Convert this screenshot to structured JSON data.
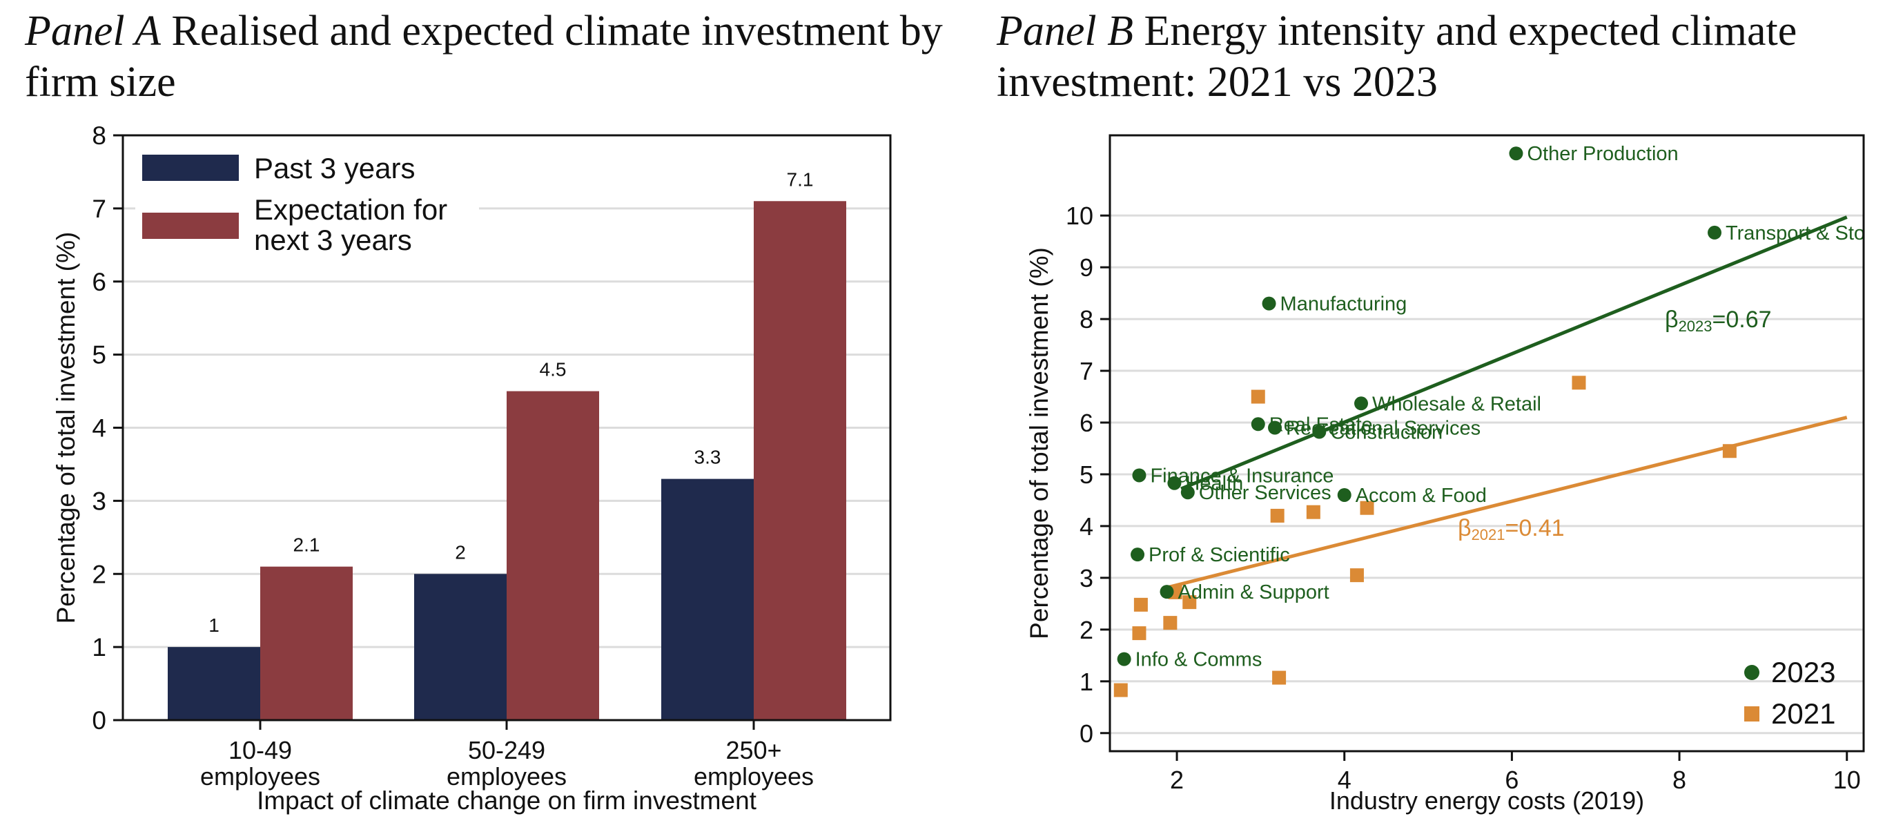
{
  "panel_a": {
    "title_prefix": "Panel A",
    "title_rest": "Realised and expected climate investment by firm size"
  },
  "panel_b": {
    "title_prefix": "Panel B",
    "title_rest": "Energy intensity and expected climate investment: 2021 vs 2023"
  },
  "colors": {
    "navy": "#1f2a4d",
    "maroon": "#8b3c40",
    "green": "#1e5e1e",
    "orange": "#db8a35"
  },
  "chart_data": [
    {
      "type": "bar",
      "title": "Realised and expected climate investment by firm size",
      "xlabel": "Impact of climate change on firm investment",
      "ylabel": "Percentage of total investment (%)",
      "ylim": [
        0,
        8
      ],
      "yticks": [
        "0",
        "1",
        "2",
        "3",
        "4",
        "5",
        "6",
        "7",
        "8"
      ],
      "categories": [
        [
          "10-49",
          "employees"
        ],
        [
          "50-249",
          "employees"
        ],
        [
          "250+",
          "employees"
        ]
      ],
      "legend_position": "top-left",
      "series": [
        {
          "name": "Past 3 years",
          "values": [
            1,
            2,
            3.3
          ],
          "labels": [
            "1",
            "2",
            "3.3"
          ]
        },
        {
          "name": "Expectation for next 3 years",
          "legend_lines": [
            "Expectation for",
            "next 3 years"
          ],
          "values": [
            2.1,
            4.5,
            7.1
          ],
          "labels": [
            "2.1",
            "4.5",
            "7.1"
          ]
        }
      ]
    },
    {
      "type": "scatter",
      "title": "Energy intensity and expected climate investment: 2021 vs 2023",
      "xlabel": "Industry energy costs (2019)",
      "ylabel": "Percentage of total investment (%)",
      "xlim": [
        1.2,
        10.2
      ],
      "ylim": [
        -0.35,
        11.55
      ],
      "xticks": [
        "2",
        "4",
        "6",
        "8",
        "10"
      ],
      "yticks": [
        "0",
        "1",
        "2",
        "3",
        "4",
        "5",
        "6",
        "7",
        "8",
        "9",
        "10"
      ],
      "legend_position": "bottom-right",
      "series": [
        {
          "name": "2023",
          "points": [
            {
              "x": 6.05,
              "y": 11.2,
              "label": "Other Production"
            },
            {
              "x": 8.42,
              "y": 9.67,
              "label": "Transport & Storage"
            },
            {
              "x": 3.1,
              "y": 8.3,
              "label": "Manufacturing"
            },
            {
              "x": 4.2,
              "y": 6.37,
              "label": "Wholesale & Retail"
            },
            {
              "x": 2.97,
              "y": 5.97,
              "label": "Real Estate"
            },
            {
              "x": 3.17,
              "y": 5.9,
              "label": "Recreational Services"
            },
            {
              "x": 3.7,
              "y": 5.82,
              "label": "Construction"
            },
            {
              "x": 1.55,
              "y": 4.98,
              "label": "Finance & Insurance"
            },
            {
              "x": 1.97,
              "y": 4.83,
              "label": "Health"
            },
            {
              "x": 2.13,
              "y": 4.65,
              "label": "Other Services"
            },
            {
              "x": 4.0,
              "y": 4.6,
              "label": "Accom & Food"
            },
            {
              "x": 1.53,
              "y": 3.45,
              "label": "Prof & Scientific"
            },
            {
              "x": 1.88,
              "y": 2.73,
              "label": "Admin & Support"
            },
            {
              "x": 1.37,
              "y": 1.43,
              "label": "Info & Comms"
            }
          ],
          "fit": {
            "beta_symbol": "β",
            "beta_sub": "2023",
            "beta_val": "=0.67",
            "x0": 2.05,
            "y0": 4.72,
            "x1": 10.0,
            "y1": 9.97
          }
        },
        {
          "name": "2021",
          "points": [
            {
              "x": 2.97,
              "y": 6.5
            },
            {
              "x": 6.8,
              "y": 6.77
            },
            {
              "x": 8.6,
              "y": 5.45
            },
            {
              "x": 3.2,
              "y": 4.2
            },
            {
              "x": 3.63,
              "y": 4.27
            },
            {
              "x": 4.27,
              "y": 4.35
            },
            {
              "x": 4.15,
              "y": 3.05
            },
            {
              "x": 1.98,
              "y": 2.72
            },
            {
              "x": 1.57,
              "y": 2.48
            },
            {
              "x": 2.15,
              "y": 2.53
            },
            {
              "x": 1.92,
              "y": 2.13
            },
            {
              "x": 1.55,
              "y": 1.93
            },
            {
              "x": 3.22,
              "y": 1.07
            },
            {
              "x": 1.33,
              "y": 0.83
            }
          ],
          "fit": {
            "beta_symbol": "β",
            "beta_sub": "2021",
            "beta_val": "=0.41",
            "x0": 1.9,
            "y0": 2.82,
            "x1": 10.0,
            "y1": 6.1
          }
        }
      ]
    }
  ]
}
